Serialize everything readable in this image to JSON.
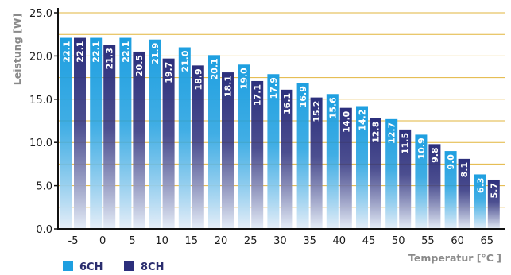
{
  "chart_data": {
    "type": "bar",
    "xlabel": "Temperatur [°C ]",
    "ylabel": "Leistung [W]",
    "ylim": [
      0,
      25
    ],
    "yticks": [
      "0.0",
      "5.0",
      "10.0",
      "15.0",
      "20.0",
      "25.0"
    ],
    "grid": true,
    "legend_position": "bottom-left",
    "categories": [
      "-5",
      "0",
      "5",
      "10",
      "15",
      "20",
      "25",
      "30",
      "35",
      "40",
      "45",
      "50",
      "55",
      "60",
      "65"
    ],
    "series": [
      {
        "name": "6CH",
        "color": "#1e9fe0",
        "values": [
          22.1,
          22.1,
          22.1,
          21.9,
          21.0,
          20.1,
          19.0,
          17.9,
          16.9,
          15.6,
          14.2,
          12.7,
          10.9,
          9.0,
          6.3
        ],
        "labels": [
          "22.1",
          "22.1",
          "22.1",
          "21.9",
          "21.0",
          "20.1",
          "19.0",
          "17.9",
          "16.9",
          "15.6",
          "14.2",
          "12.7",
          "10.9",
          "9.0",
          "6.3"
        ]
      },
      {
        "name": "8CH",
        "color": "#2c2f7c",
        "values": [
          22.1,
          21.3,
          20.5,
          19.7,
          18.9,
          18.1,
          17.1,
          16.1,
          15.2,
          14.0,
          12.8,
          11.5,
          9.8,
          8.1,
          5.7
        ],
        "labels": [
          "22.1",
          "21.3",
          "20.5",
          "19.7",
          "18.9",
          "18.1",
          "17.1",
          "16.1",
          "15.2",
          "14.0",
          "12.8",
          "11.5",
          "9.8",
          "8.1",
          "5.7"
        ]
      }
    ],
    "colors": {
      "grid": "#e2b53d",
      "axis": "#111111",
      "bar_fade": "#e6eef8"
    }
  }
}
